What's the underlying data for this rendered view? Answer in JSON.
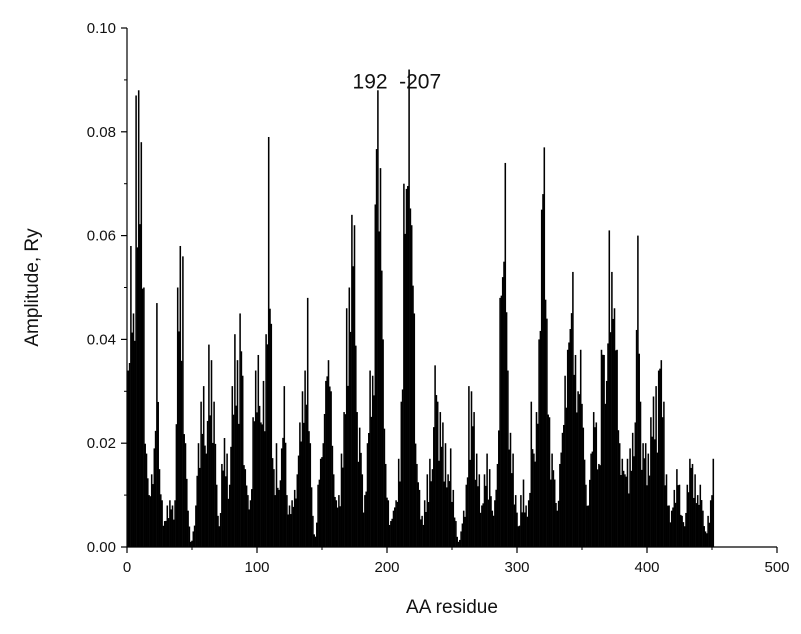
{
  "chart_data": {
    "type": "bar",
    "xlabel": "AA residue",
    "ylabel": "Amplitude, Ry",
    "xlim": [
      0,
      500
    ],
    "ylim": [
      0,
      0.1
    ],
    "x_ticks": [
      0,
      100,
      200,
      300,
      400,
      500
    ],
    "x_tick_labels": [
      "0",
      "100",
      "200",
      "300",
      "400",
      "500"
    ],
    "y_ticks": [
      0,
      0.02,
      0.04,
      0.06,
      0.08,
      0.1
    ],
    "y_tick_labels": [
      "0.00",
      "0.02",
      "0.04",
      "0.06",
      "0.08",
      "0.10"
    ],
    "grid": false,
    "bar_color": "#000000",
    "annotations": [
      {
        "text": "192",
        "x": 192,
        "y": 0.0878
      },
      {
        "text": "-207",
        "x": 207,
        "y": 0.0878
      }
    ],
    "series": [
      {
        "residues": [
          1,
          451
        ],
        "peaks": [
          [
            1,
            0.034
          ],
          [
            3,
            0.058
          ],
          [
            5,
            0.045
          ],
          [
            7,
            0.087
          ],
          [
            9,
            0.088
          ],
          [
            11,
            0.078
          ],
          [
            13,
            0.05
          ],
          [
            15,
            0.018
          ],
          [
            17,
            0.01
          ],
          [
            19,
            0.014
          ],
          [
            21,
            0.019
          ],
          [
            23,
            0.047
          ],
          [
            25,
            0.015
          ],
          [
            27,
            0.009
          ],
          [
            29,
            0.005
          ],
          [
            31,
            0.008
          ],
          [
            33,
            0.009
          ],
          [
            35,
            0.008
          ],
          [
            37,
            0.009
          ],
          [
            39,
            0.05
          ],
          [
            41,
            0.058
          ],
          [
            43,
            0.056
          ],
          [
            45,
            0.02
          ],
          [
            47,
            0.007
          ],
          [
            49,
            0.001
          ],
          [
            51,
            0.003
          ],
          [
            53,
            0.008
          ],
          [
            55,
            0.02
          ],
          [
            57,
            0.028
          ],
          [
            59,
            0.031
          ],
          [
            61,
            0.018
          ],
          [
            63,
            0.039
          ],
          [
            65,
            0.036
          ],
          [
            67,
            0.028
          ],
          [
            69,
            0.012
          ],
          [
            71,
            0.004
          ],
          [
            73,
            0.016
          ],
          [
            75,
            0.021
          ],
          [
            77,
            0.018
          ],
          [
            79,
            0.012
          ],
          [
            81,
            0.031
          ],
          [
            83,
            0.041
          ],
          [
            85,
            0.036
          ],
          [
            87,
            0.045
          ],
          [
            89,
            0.033
          ],
          [
            91,
            0.015
          ],
          [
            93,
            0.01
          ],
          [
            95,
            0.009
          ],
          [
            97,
            0.025
          ],
          [
            99,
            0.034
          ],
          [
            101,
            0.037
          ],
          [
            103,
            0.024
          ],
          [
            105,
            0.032
          ],
          [
            107,
            0.041
          ],
          [
            109,
            0.079
          ],
          [
            111,
            0.043
          ],
          [
            113,
            0.015
          ],
          [
            115,
            0.02
          ],
          [
            117,
            0.011
          ],
          [
            119,
            0.019
          ],
          [
            121,
            0.031
          ],
          [
            123,
            0.01
          ],
          [
            125,
            0.008
          ],
          [
            127,
            0.009
          ],
          [
            129,
            0.011
          ],
          [
            131,
            0.014
          ],
          [
            133,
            0.024
          ],
          [
            135,
            0.03
          ],
          [
            137,
            0.034
          ],
          [
            139,
            0.048
          ],
          [
            141,
            0.02
          ],
          [
            143,
            0.006
          ],
          [
            145,
            0.002
          ],
          [
            147,
            0.012
          ],
          [
            149,
            0.017
          ],
          [
            151,
            0.02
          ],
          [
            153,
            0.032
          ],
          [
            155,
            0.036
          ],
          [
            157,
            0.03
          ],
          [
            159,
            0.014
          ],
          [
            161,
            0.009
          ],
          [
            163,
            0.01
          ],
          [
            165,
            0.018
          ],
          [
            167,
            0.026
          ],
          [
            169,
            0.046
          ],
          [
            171,
            0.05
          ],
          [
            173,
            0.064
          ],
          [
            175,
            0.062
          ],
          [
            177,
            0.026
          ],
          [
            179,
            0.023
          ],
          [
            181,
            0.014
          ],
          [
            183,
            0.01
          ],
          [
            185,
            0.02
          ],
          [
            187,
            0.034
          ],
          [
            189,
            0.033
          ],
          [
            191,
            0.066
          ],
          [
            193,
            0.088
          ],
          [
            195,
            0.073
          ],
          [
            197,
            0.04
          ],
          [
            199,
            0.016
          ],
          [
            201,
            0.009
          ],
          [
            203,
            0.005
          ],
          [
            205,
            0.007
          ],
          [
            207,
            0.009
          ],
          [
            209,
            0.017
          ],
          [
            211,
            0.028
          ],
          [
            213,
            0.07
          ],
          [
            215,
            0.069
          ],
          [
            217,
            0.092
          ],
          [
            219,
            0.062
          ],
          [
            221,
            0.045
          ],
          [
            223,
            0.016
          ],
          [
            225,
            0.011
          ],
          [
            227,
            0.006
          ],
          [
            229,
            0.009
          ],
          [
            231,
            0.014
          ],
          [
            233,
            0.017
          ],
          [
            235,
            0.015
          ],
          [
            237,
            0.035
          ],
          [
            239,
            0.028
          ],
          [
            241,
            0.026
          ],
          [
            243,
            0.024
          ],
          [
            245,
            0.02
          ],
          [
            247,
            0.014
          ],
          [
            249,
            0.019
          ],
          [
            251,
            0.011
          ],
          [
            253,
            0.005
          ],
          [
            255,
            0.001
          ],
          [
            257,
            0.003
          ],
          [
            259,
            0.007
          ],
          [
            261,
            0.012
          ],
          [
            263,
            0.031
          ],
          [
            265,
            0.03
          ],
          [
            267,
            0.026
          ],
          [
            269,
            0.018
          ],
          [
            271,
            0.014
          ],
          [
            273,
            0.008
          ],
          [
            275,
            0.014
          ],
          [
            277,
            0.018
          ],
          [
            279,
            0.015
          ],
          [
            281,
            0.007
          ],
          [
            283,
            0.009
          ],
          [
            285,
            0.016
          ],
          [
            287,
            0.048
          ],
          [
            289,
            0.052
          ],
          [
            291,
            0.074
          ],
          [
            293,
            0.034
          ],
          [
            295,
            0.022
          ],
          [
            297,
            0.018
          ],
          [
            299,
            0.01
          ],
          [
            301,
            0.004
          ],
          [
            303,
            0.01
          ],
          [
            305,
            0.013
          ],
          [
            307,
            0.008
          ],
          [
            309,
            0.009
          ],
          [
            311,
            0.028
          ],
          [
            313,
            0.018
          ],
          [
            315,
            0.026
          ],
          [
            317,
            0.04
          ],
          [
            319,
            0.065
          ],
          [
            321,
            0.077
          ],
          [
            323,
            0.044
          ],
          [
            325,
            0.025
          ],
          [
            327,
            0.018
          ],
          [
            329,
            0.013
          ],
          [
            331,
            0.007
          ],
          [
            333,
            0.016
          ],
          [
            335,
            0.022
          ],
          [
            337,
            0.033
          ],
          [
            339,
            0.038
          ],
          [
            341,
            0.042
          ],
          [
            343,
            0.053
          ],
          [
            345,
            0.037
          ],
          [
            347,
            0.03
          ],
          [
            349,
            0.038
          ],
          [
            351,
            0.023
          ],
          [
            353,
            0.012
          ],
          [
            355,
            0.008
          ],
          [
            357,
            0.018
          ],
          [
            359,
            0.026
          ],
          [
            361,
            0.024
          ],
          [
            363,
            0.016
          ],
          [
            365,
            0.038
          ],
          [
            367,
            0.037
          ],
          [
            369,
            0.032
          ],
          [
            371,
            0.061
          ],
          [
            373,
            0.053
          ],
          [
            375,
            0.046
          ],
          [
            377,
            0.038
          ],
          [
            379,
            0.02
          ],
          [
            381,
            0.017
          ],
          [
            383,
            0.014
          ],
          [
            385,
            0.017
          ],
          [
            387,
            0.019
          ],
          [
            389,
            0.022
          ],
          [
            391,
            0.024
          ],
          [
            393,
            0.06
          ],
          [
            395,
            0.028
          ],
          [
            397,
            0.02
          ],
          [
            399,
            0.02
          ],
          [
            401,
            0.018
          ],
          [
            403,
            0.025
          ],
          [
            405,
            0.029
          ],
          [
            407,
            0.031
          ],
          [
            409,
            0.034
          ],
          [
            411,
            0.036
          ],
          [
            413,
            0.028
          ],
          [
            415,
            0.014
          ],
          [
            417,
            0.008
          ],
          [
            419,
            0.007
          ],
          [
            421,
            0.011
          ],
          [
            423,
            0.015
          ],
          [
            425,
            0.012
          ],
          [
            427,
            0.006
          ],
          [
            429,
            0.004
          ],
          [
            431,
            0.012
          ],
          [
            433,
            0.017
          ],
          [
            435,
            0.016
          ],
          [
            437,
            0.014
          ],
          [
            439,
            0.01
          ],
          [
            441,
            0.012
          ],
          [
            443,
            0.007
          ],
          [
            445,
            0.003
          ],
          [
            447,
            0.006
          ],
          [
            449,
            0.009
          ],
          [
            451,
            0.017
          ]
        ]
      }
    ]
  }
}
